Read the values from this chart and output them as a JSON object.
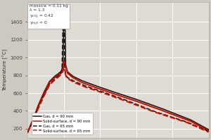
{
  "ylabel": "Temperature [°C]",
  "ylim": [
    100,
    1620
  ],
  "yticks": [
    200,
    400,
    600,
    800,
    1000,
    1200,
    1400
  ],
  "background_color": "#cdc8c0",
  "plot_bg_color": "#dedad4",
  "grid_color": "#ffffff",
  "annotation_lines": [
    "massice = 0.11 kg",
    "λ = 1.3",
    "γ$_{CO_2}$ = 0.42",
    "γ$_{H_2O}$ = 0"
  ],
  "legend": [
    {
      "label": "Gas, d = 90 mm",
      "color": "#1a1a1a",
      "linestyle": "solid"
    },
    {
      "label": "Solid-surface, d = 90 mm",
      "color": "#cc1100",
      "linestyle": "solid"
    },
    {
      "label": "Gas, d = 65 mm",
      "color": "#1a1a1a",
      "linestyle": "dashed"
    },
    {
      "label": "Solid-surface, d = 65 mm",
      "color": "#cc1100",
      "linestyle": "dashed"
    }
  ],
  "curves": {
    "gas_90": {
      "color": "#1a1a1a",
      "linestyle": "solid",
      "lw": 1.2,
      "x": [
        0.0,
        0.03,
        0.06,
        0.09,
        0.12,
        0.15,
        0.17,
        0.185,
        0.195,
        0.2,
        0.205,
        0.21,
        0.22,
        0.25,
        0.3,
        0.38,
        0.48,
        0.6,
        0.75,
        0.9,
        1.0
      ],
      "y": [
        160,
        310,
        470,
        610,
        730,
        790,
        820,
        845,
        900,
        1520,
        1550,
        920,
        840,
        790,
        740,
        680,
        610,
        530,
        420,
        300,
        190
      ]
    },
    "solid_90": {
      "color": "#cc1100",
      "linestyle": "solid",
      "lw": 1.5,
      "x": [
        0.0,
        0.03,
        0.06,
        0.09,
        0.12,
        0.15,
        0.17,
        0.185,
        0.195,
        0.2,
        0.205,
        0.21,
        0.22,
        0.25,
        0.3,
        0.38,
        0.48,
        0.6,
        0.75,
        0.9,
        1.0
      ],
      "y": [
        160,
        300,
        455,
        595,
        720,
        775,
        805,
        825,
        845,
        960,
        940,
        895,
        825,
        775,
        720,
        660,
        590,
        510,
        400,
        285,
        175
      ]
    },
    "gas_65": {
      "color": "#1a1a1a",
      "linestyle": "dashed",
      "lw": 1.2,
      "x": [
        0.0,
        0.03,
        0.06,
        0.09,
        0.12,
        0.15,
        0.17,
        0.182,
        0.19,
        0.195,
        0.2,
        0.205,
        0.21,
        0.22,
        0.26,
        0.32,
        0.42,
        0.55,
        0.7,
        0.88,
        1.0
      ],
      "y": [
        160,
        295,
        445,
        580,
        700,
        760,
        795,
        820,
        870,
        1360,
        1430,
        870,
        810,
        775,
        730,
        680,
        610,
        515,
        395,
        275,
        170
      ]
    },
    "solid_65": {
      "color": "#cc1100",
      "linestyle": "dashed",
      "lw": 1.5,
      "x": [
        0.0,
        0.03,
        0.06,
        0.09,
        0.12,
        0.15,
        0.17,
        0.182,
        0.19,
        0.195,
        0.2,
        0.205,
        0.21,
        0.22,
        0.26,
        0.32,
        0.42,
        0.55,
        0.7,
        0.88,
        1.0
      ],
      "y": [
        160,
        288,
        435,
        568,
        690,
        750,
        782,
        805,
        825,
        855,
        870,
        850,
        800,
        765,
        718,
        668,
        600,
        505,
        388,
        270,
        162
      ]
    }
  },
  "xlim": [
    0.0,
    1.0
  ]
}
